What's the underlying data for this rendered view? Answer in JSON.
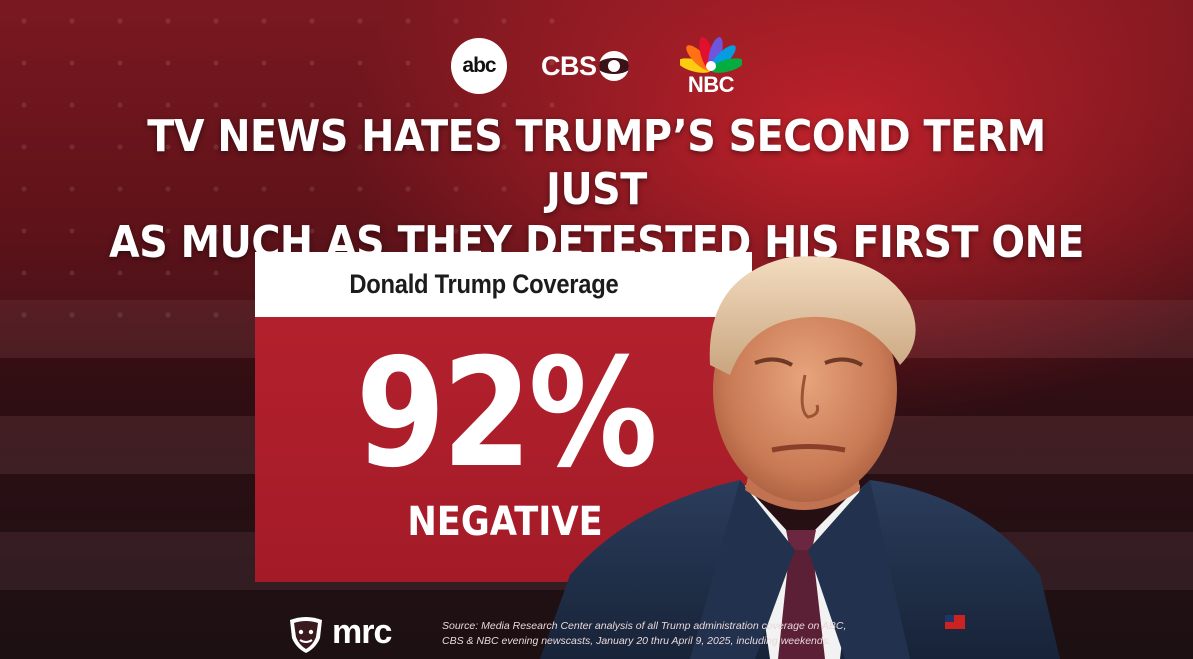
{
  "logos": {
    "abc": "abc",
    "cbs": "CBS",
    "nbc": "NBC"
  },
  "headline": {
    "line1": "TV NEWS HATES TRUMP’S SECOND TERM JUST",
    "line2": "AS MUCH AS THEY DETESTED HIS FIRST ONE"
  },
  "stat_card": {
    "title": "Donald Trump Coverage",
    "value": "92%",
    "label": "NEGATIVE"
  },
  "footer": {
    "brand": "mrc",
    "source_line1": "Source: Media Research Center analysis of all Trump administration coverage on ABC,",
    "source_line2": "CBS & NBC evening newscasts, January 20 thru April 9, 2025, including weekends."
  },
  "colors": {
    "accent_red": "#b3202d",
    "card_header_bg": "#ffffff",
    "text_white": "#ffffff"
  },
  "icons": {
    "abc": "abc-logo-icon",
    "cbs": "cbs-eye-icon",
    "nbc": "nbc-peacock-icon",
    "mrc": "mrc-bulldog-shield-icon"
  }
}
